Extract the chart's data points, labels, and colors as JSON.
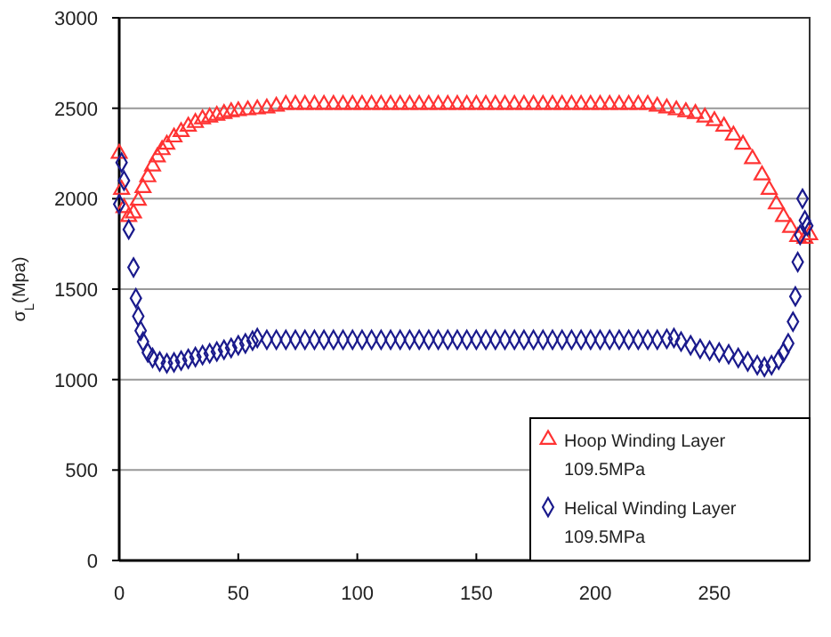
{
  "chart_data": {
    "type": "scatter",
    "ylabel": "σ$_{L}$(Mpa)",
    "xlim": [
      0,
      290
    ],
    "xticks": [
      0,
      50,
      100,
      150,
      200,
      250
    ],
    "ylim": [
      0,
      3000
    ],
    "yticks": [
      0,
      500,
      1000,
      1500,
      2000,
      2500,
      3000
    ],
    "grid": "y",
    "legend": "bottom right",
    "series": [
      {
        "name": "Hoop Winding Layer\n109.5MPa",
        "color": "#ff3333",
        "marker": "triangle",
        "x": [
          0,
          1,
          2,
          4,
          6,
          8,
          10,
          12,
          14,
          16,
          18,
          20,
          23,
          26,
          29,
          32,
          35,
          38,
          41,
          44,
          47,
          50,
          54,
          58,
          62,
          66,
          70,
          74,
          78,
          82,
          86,
          90,
          94,
          98,
          102,
          106,
          110,
          114,
          118,
          122,
          126,
          130,
          134,
          138,
          142,
          146,
          150,
          154,
          158,
          162,
          166,
          170,
          174,
          178,
          182,
          186,
          190,
          194,
          198,
          202,
          206,
          210,
          214,
          218,
          222,
          226,
          230,
          234,
          238,
          242,
          246,
          250,
          254,
          258,
          262,
          266,
          270,
          273,
          276,
          279,
          282,
          285,
          288,
          290
        ],
        "values": [
          2250,
          2050,
          1950,
          1900,
          1920,
          1990,
          2060,
          2120,
          2180,
          2230,
          2270,
          2300,
          2340,
          2370,
          2400,
          2420,
          2440,
          2450,
          2460,
          2470,
          2480,
          2485,
          2490,
          2495,
          2500,
          2510,
          2520,
          2520,
          2520,
          2520,
          2520,
          2520,
          2520,
          2520,
          2520,
          2520,
          2520,
          2520,
          2520,
          2520,
          2520,
          2520,
          2520,
          2520,
          2520,
          2520,
          2520,
          2520,
          2520,
          2520,
          2520,
          2520,
          2520,
          2520,
          2520,
          2520,
          2520,
          2520,
          2520,
          2520,
          2520,
          2520,
          2520,
          2520,
          2520,
          2510,
          2500,
          2490,
          2480,
          2470,
          2450,
          2430,
          2400,
          2350,
          2300,
          2220,
          2130,
          2050,
          1970,
          1900,
          1840,
          1790,
          1780,
          1800
        ]
      },
      {
        "name": "Helical Winding Layer\n109.5MPa",
        "color": "#1a1a8c",
        "marker": "diamond",
        "x": [
          0,
          1,
          2,
          4,
          6,
          7,
          8,
          9,
          10,
          12,
          14,
          17,
          20,
          23,
          26,
          29,
          32,
          35,
          38,
          41,
          44,
          47,
          50,
          53,
          56,
          58,
          62,
          66,
          70,
          74,
          78,
          82,
          86,
          90,
          94,
          98,
          102,
          106,
          110,
          114,
          118,
          122,
          126,
          130,
          134,
          138,
          142,
          146,
          150,
          154,
          158,
          162,
          166,
          170,
          174,
          178,
          182,
          186,
          190,
          194,
          198,
          202,
          206,
          210,
          214,
          218,
          222,
          226,
          230,
          233,
          236,
          240,
          244,
          248,
          252,
          256,
          260,
          264,
          268,
          271,
          274,
          277,
          279,
          281,
          283,
          284,
          285,
          286,
          287,
          288,
          289
        ],
        "values": [
          1970,
          2200,
          2100,
          1830,
          1620,
          1450,
          1350,
          1270,
          1210,
          1150,
          1120,
          1100,
          1090,
          1095,
          1105,
          1115,
          1125,
          1135,
          1145,
          1155,
          1165,
          1175,
          1190,
          1200,
          1215,
          1230,
          1220,
          1220,
          1220,
          1220,
          1220,
          1220,
          1220,
          1220,
          1220,
          1220,
          1220,
          1220,
          1220,
          1220,
          1220,
          1220,
          1220,
          1220,
          1220,
          1220,
          1220,
          1220,
          1220,
          1220,
          1220,
          1220,
          1220,
          1220,
          1220,
          1220,
          1220,
          1220,
          1220,
          1220,
          1220,
          1220,
          1220,
          1220,
          1220,
          1220,
          1220,
          1220,
          1225,
          1230,
          1210,
          1190,
          1170,
          1160,
          1150,
          1140,
          1120,
          1100,
          1080,
          1070,
          1080,
          1110,
          1150,
          1200,
          1320,
          1460,
          1650,
          1800,
          2000,
          1880,
          1850
        ]
      }
    ]
  }
}
